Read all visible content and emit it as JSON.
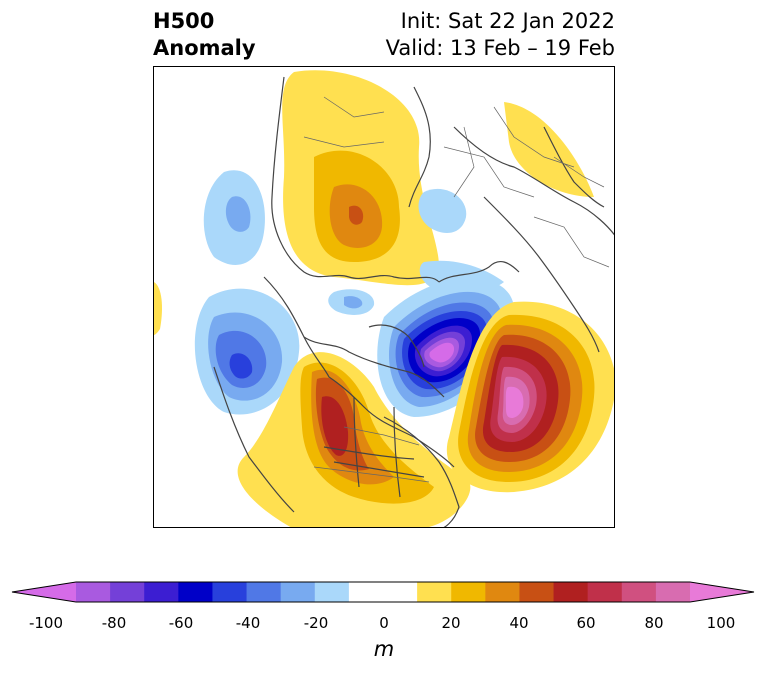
{
  "title": {
    "left_line1": "H500",
    "left_line2": "Anomaly",
    "right_line1": "Init: Sat 22 Jan 2022",
    "right_line2": "Valid: 13 Feb – 19 Feb"
  },
  "colorbar": {
    "unit": "m",
    "ticks": [
      "-100",
      "-80",
      "-60",
      "-40",
      "-20",
      "0",
      "20",
      "40",
      "60",
      "80",
      "100"
    ],
    "colors": [
      "#d56be8",
      "#a95ae0",
      "#7440d8",
      "#3c1ed2",
      "#0000c8",
      "#2840dc",
      "#5078e6",
      "#78aaf0",
      "#aad8fa",
      "#ffffff",
      "#ffffff",
      "#ffe050",
      "#f0b800",
      "#e08810",
      "#c85014",
      "#b02020",
      "#c0304a",
      "#d05080",
      "#d86cb0",
      "#e87ad8"
    ]
  },
  "colors": {
    "neg_dark": "#2a2ad0",
    "pos_dark": "#b02020",
    "coast": "#444444"
  }
}
